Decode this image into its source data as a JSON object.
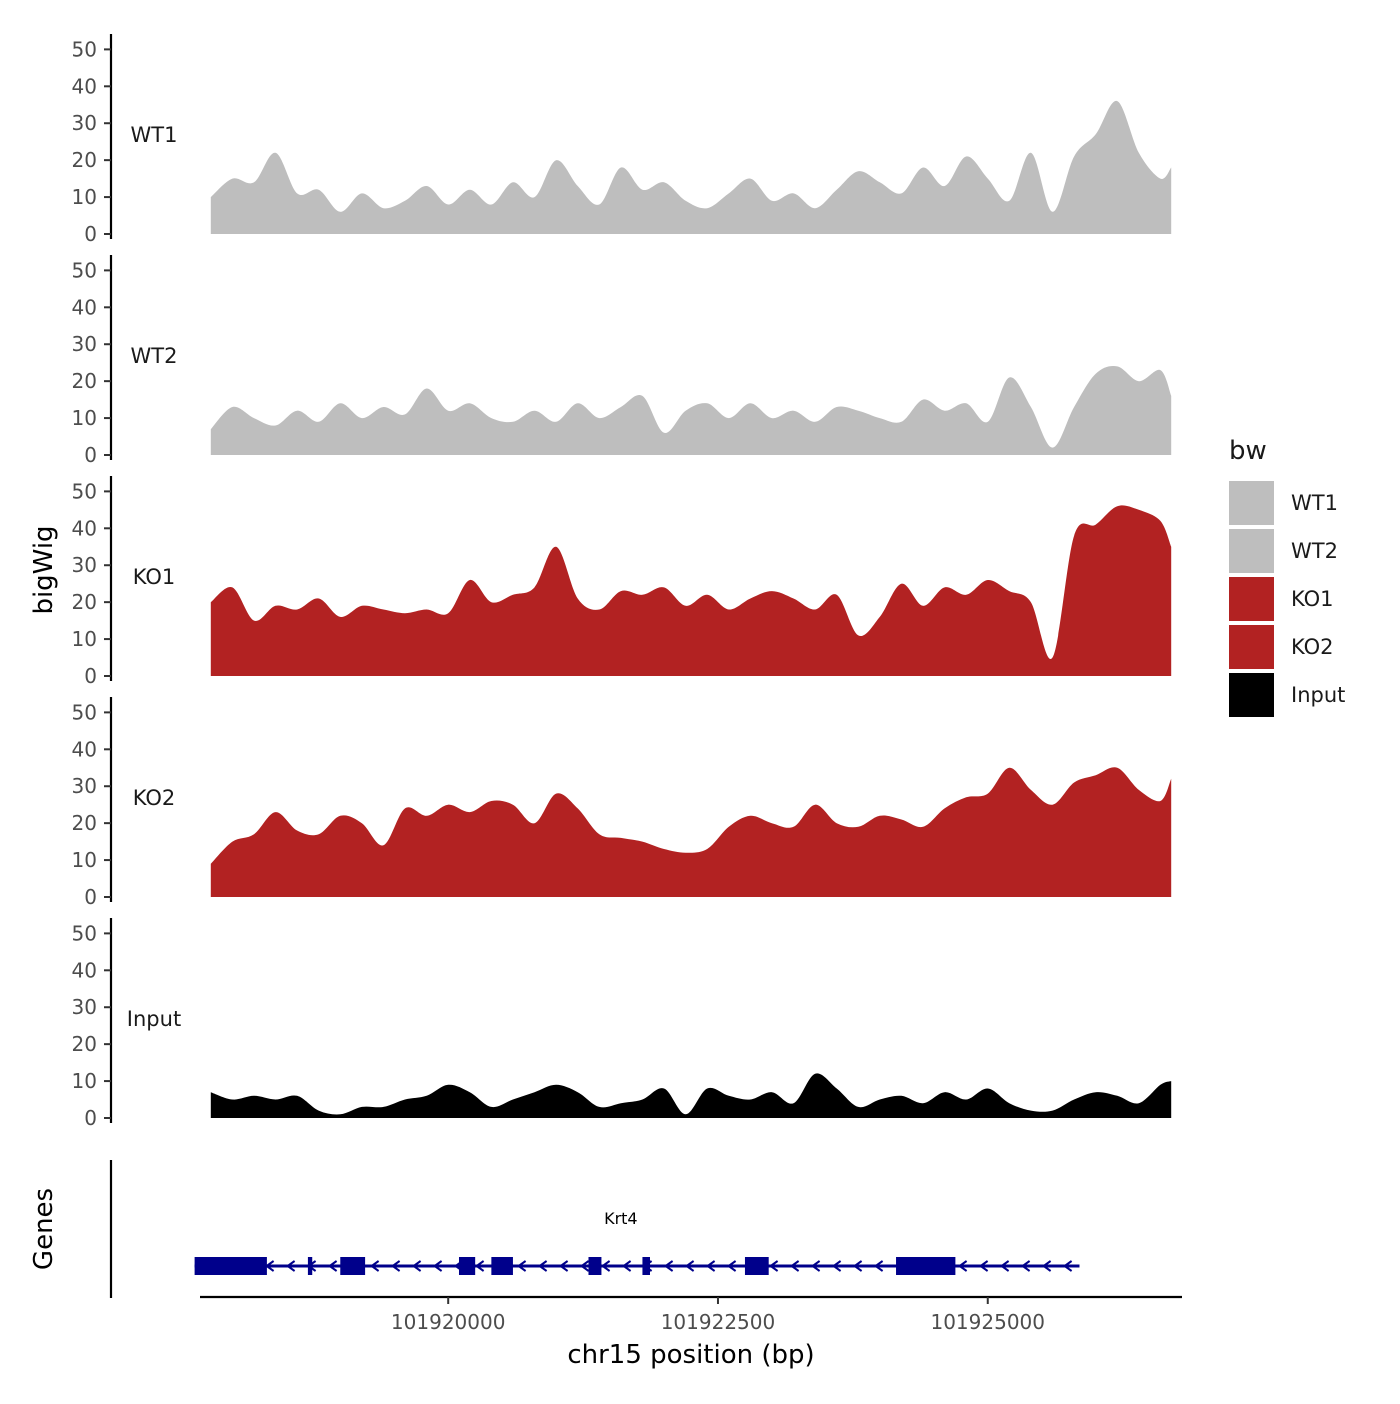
{
  "chart_data": {
    "type": "area",
    "ylabel": "bigWig",
    "genes_label": "Genes",
    "xlabel": "chr15 position (bp)",
    "x_range": [
      101917700,
      101926800
    ],
    "y_range": [
      0,
      52
    ],
    "y_ticks": [
      0,
      10,
      20,
      30,
      40,
      50
    ],
    "x_ticks": [
      101920000,
      101922500,
      101925000
    ],
    "x_tick_labels": [
      "101920000",
      "101922500",
      "101925000"
    ],
    "legend": {
      "title": "bw",
      "entries": [
        {
          "label": "WT1",
          "color": "#bebebe"
        },
        {
          "label": "WT2",
          "color": "#bebebe"
        },
        {
          "label": "KO1",
          "color": "#b22222"
        },
        {
          "label": "KO2",
          "color": "#b22222"
        },
        {
          "label": "Input",
          "color": "#000000"
        }
      ]
    },
    "x": [
      101917800,
      101918000,
      101918200,
      101918400,
      101918600,
      101918800,
      101919000,
      101919200,
      101919400,
      101919600,
      101919800,
      101920000,
      101920200,
      101920400,
      101920600,
      101920800,
      101921000,
      101921200,
      101921400,
      101921600,
      101921800,
      101922000,
      101922200,
      101922400,
      101922600,
      101922800,
      101923000,
      101923200,
      101923400,
      101923600,
      101923800,
      101924000,
      101924200,
      101924400,
      101924600,
      101924800,
      101925000,
      101925200,
      101925400,
      101925600,
      101925800,
      101926000,
      101926200,
      101926400,
      101926600,
      101926700
    ],
    "series": [
      {
        "name": "WT1",
        "color": "#bebebe",
        "values": [
          10,
          15,
          14,
          22,
          11,
          12,
          6,
          11,
          7,
          9,
          13,
          8,
          12,
          8,
          14,
          10,
          20,
          13,
          8,
          18,
          12,
          14,
          9,
          7,
          11,
          15,
          9,
          11,
          7,
          12,
          17,
          14,
          11,
          18,
          13,
          21,
          15,
          9,
          22,
          6,
          21,
          27,
          36,
          22,
          15,
          18
        ]
      },
      {
        "name": "WT2",
        "color": "#bebebe",
        "values": [
          7,
          13,
          10,
          8,
          12,
          9,
          14,
          10,
          13,
          11,
          18,
          12,
          14,
          10,
          9,
          12,
          9,
          14,
          10,
          13,
          16,
          6,
          12,
          14,
          10,
          14,
          10,
          12,
          9,
          13,
          12,
          10,
          9,
          15,
          12,
          14,
          9,
          21,
          13,
          2,
          13,
          22,
          24,
          20,
          23,
          16
        ]
      },
      {
        "name": "KO1",
        "color": "#b22222",
        "values": [
          20,
          24,
          15,
          19,
          18,
          21,
          16,
          19,
          18,
          17,
          18,
          17,
          26,
          20,
          22,
          24,
          35,
          21,
          18,
          23,
          22,
          24,
          19,
          22,
          18,
          21,
          23,
          21,
          18,
          22,
          11,
          16,
          25,
          19,
          24,
          22,
          26,
          23,
          20,
          5,
          38,
          41,
          46,
          45,
          42,
          35
        ]
      },
      {
        "name": "KO2",
        "color": "#b22222",
        "values": [
          9,
          15,
          17,
          23,
          18,
          17,
          22,
          20,
          14,
          24,
          22,
          25,
          23,
          26,
          25,
          20,
          28,
          24,
          17,
          16,
          15,
          13,
          12,
          13,
          19,
          22,
          20,
          19,
          25,
          20,
          19,
          22,
          21,
          19,
          24,
          27,
          28,
          35,
          29,
          25,
          31,
          33,
          35,
          29,
          26,
          32
        ]
      },
      {
        "name": "Input",
        "color": "#000000",
        "values": [
          7,
          5,
          6,
          5,
          6,
          2,
          1,
          3,
          3,
          5,
          6,
          9,
          7,
          3,
          5,
          7,
          9,
          7,
          3,
          4,
          5,
          8,
          1,
          8,
          6,
          5,
          7,
          4,
          12,
          8,
          3,
          5,
          6,
          4,
          7,
          5,
          8,
          4,
          2,
          2,
          5,
          7,
          6,
          4,
          9,
          10
        ]
      }
    ],
    "gene": {
      "name": "Krt4",
      "strand": "-",
      "color": "#00008b",
      "start": 101917650,
      "end": 101925850,
      "exons": [
        [
          101917650,
          101918320
        ],
        [
          101918700,
          101918740
        ],
        [
          101919000,
          101919230
        ],
        [
          101920100,
          101920250
        ],
        [
          101920400,
          101920600
        ],
        [
          101921300,
          101921420
        ],
        [
          101921800,
          101921870
        ],
        [
          101922750,
          101922970
        ],
        [
          101924150,
          101924700
        ]
      ]
    }
  }
}
